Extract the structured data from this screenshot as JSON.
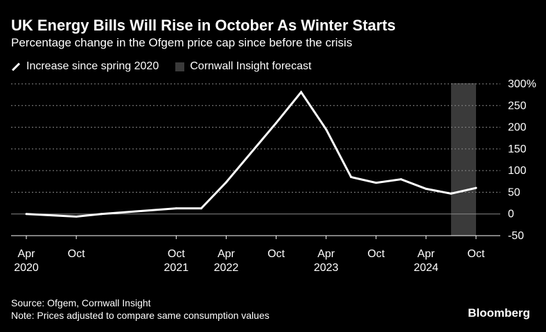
{
  "header": {
    "title": "UK Energy Bills Will Rise in October As Winter Starts",
    "subtitle": "Percentage change in the Ofgem price cap since before the crisis"
  },
  "legend": {
    "line_label": "Increase since spring 2020",
    "forecast_label": "Cornwall Insight forecast"
  },
  "footer": {
    "source": "Source: Ofgem, Cornwall Insight",
    "note": "Note: Prices adjusted to compare same consumption values",
    "brand": "Bloomberg"
  },
  "colors": {
    "background": "#000000",
    "line": "#ffffff",
    "forecast_band": "#3a3a3a",
    "grid": "#8a8a8a"
  },
  "chart_data": {
    "type": "line",
    "title": "UK Energy Bills Will Rise in October As Winter Starts",
    "subtitle": "Percentage change in the Ofgem price cap since before the crisis",
    "xlabel": "",
    "ylabel": "",
    "ylim": [
      -50,
      300
    ],
    "y_ticks": [
      300,
      250,
      200,
      150,
      100,
      50,
      0,
      -50
    ],
    "y_tick_labels": [
      "300%",
      "250",
      "200",
      "150",
      "100",
      "50",
      "0",
      "-50"
    ],
    "x_range": [
      "2020-04",
      "2024-10"
    ],
    "x_ticks": [
      {
        "month": "2020-04",
        "label": "Apr",
        "year": "2020"
      },
      {
        "month": "2020-10",
        "label": "Oct",
        "year": ""
      },
      {
        "month": "2021-10",
        "label": "Oct",
        "year": "2021"
      },
      {
        "month": "2022-04",
        "label": "Apr",
        "year": "2022"
      },
      {
        "month": "2022-10",
        "label": "Oct",
        "year": ""
      },
      {
        "month": "2023-04",
        "label": "Apr",
        "year": "2023"
      },
      {
        "month": "2023-10",
        "label": "Oct",
        "year": ""
      },
      {
        "month": "2024-04",
        "label": "Apr",
        "year": "2024"
      },
      {
        "month": "2024-10",
        "label": "Oct",
        "year": ""
      }
    ],
    "series": [
      {
        "name": "Increase since spring 2020",
        "points": [
          {
            "x": "2020-04",
            "y": 0
          },
          {
            "x": "2020-10",
            "y": -6
          },
          {
            "x": "2021-01",
            "y": 0
          },
          {
            "x": "2021-10",
            "y": 13
          },
          {
            "x": "2022-01",
            "y": 13
          },
          {
            "x": "2022-04",
            "y": 73
          },
          {
            "x": "2022-10",
            "y": 210
          },
          {
            "x": "2023-01",
            "y": 281
          },
          {
            "x": "2023-04",
            "y": 195
          },
          {
            "x": "2023-07",
            "y": 85
          },
          {
            "x": "2023-10",
            "y": 72
          },
          {
            "x": "2024-01",
            "y": 80
          },
          {
            "x": "2024-04",
            "y": 58
          },
          {
            "x": "2024-07",
            "y": 47
          },
          {
            "x": "2024-10",
            "y": 60
          }
        ]
      }
    ],
    "forecast_band": {
      "start": "2024-07",
      "end": "2024-10",
      "label": "Cornwall Insight forecast"
    },
    "grid": true,
    "legend_position": "top-left"
  }
}
